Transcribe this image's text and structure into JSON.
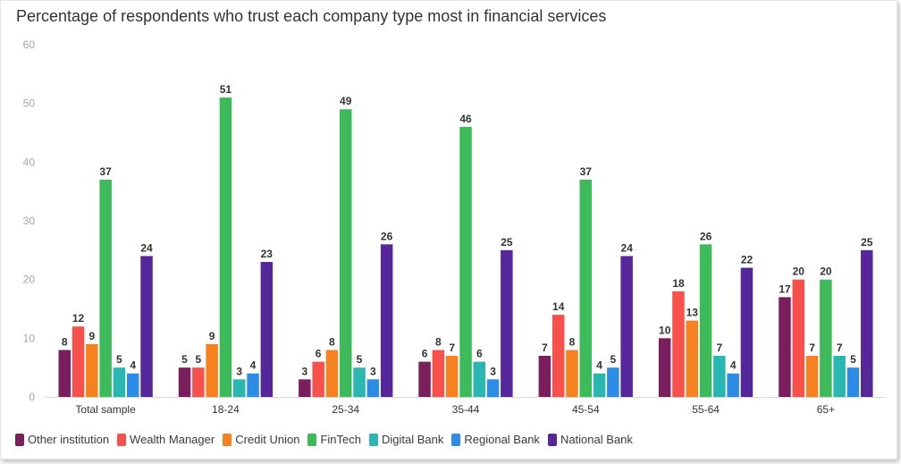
{
  "chart_data": {
    "type": "bar",
    "title": "Percentage of respondents who trust each company type most in financial services",
    "categories": [
      "Total sample",
      "18-24",
      "25-34",
      "35-44",
      "45-54",
      "55-64",
      "65+"
    ],
    "ylim": [
      0,
      60
    ],
    "yticks": [
      "0",
      "10",
      "20",
      "30",
      "40",
      "50",
      "60"
    ],
    "grid": false,
    "legend_position": "bottom-left",
    "series": [
      {
        "name": "Other institution",
        "color": "#7b1e5e",
        "values": [
          8,
          5,
          3,
          6,
          7,
          10,
          17
        ]
      },
      {
        "name": "Wealth Manager",
        "color": "#f8504a",
        "values": [
          12,
          5,
          6,
          8,
          14,
          18,
          20
        ]
      },
      {
        "name": "Credit Union",
        "color": "#f6821f",
        "values": [
          9,
          9,
          8,
          7,
          8,
          13,
          7
        ]
      },
      {
        "name": "FinTech",
        "color": "#3dbb5a",
        "values": [
          37,
          51,
          49,
          46,
          37,
          26,
          20
        ]
      },
      {
        "name": "Digital Bank",
        "color": "#2bb7b1",
        "values": [
          5,
          3,
          5,
          6,
          4,
          7,
          7
        ]
      },
      {
        "name": "Regional Bank",
        "color": "#2c8ce6",
        "values": [
          4,
          4,
          3,
          3,
          5,
          4,
          5
        ]
      },
      {
        "name": "National Bank",
        "color": "#56279a",
        "values": [
          24,
          23,
          26,
          25,
          24,
          22,
          25
        ]
      }
    ]
  }
}
